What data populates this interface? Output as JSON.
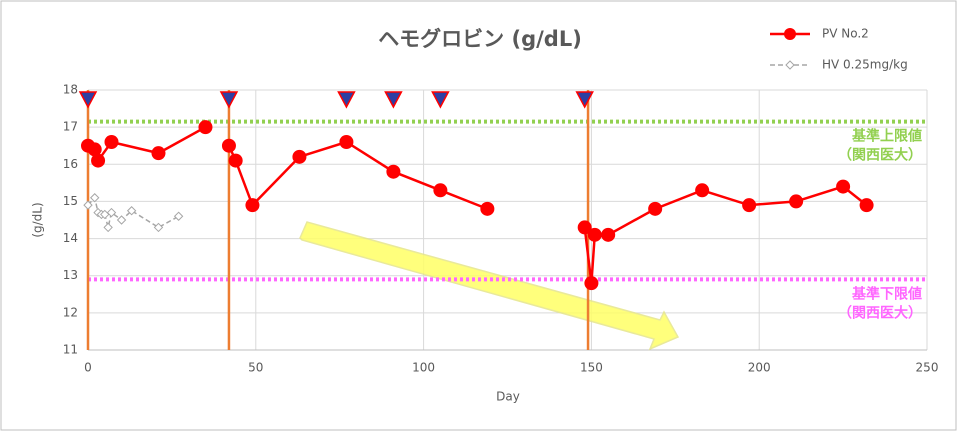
{
  "chart_data": {
    "type": "line",
    "title": "ヘモグロビン (g/dL)",
    "x_label": "Day",
    "y_label": "(g/dL)",
    "xlim": [
      0,
      250
    ],
    "xticks": [
      0,
      50,
      100,
      150,
      200,
      250
    ],
    "ylim": [
      11,
      18
    ],
    "yticks": [
      11,
      12,
      13,
      14,
      15,
      16,
      17,
      18
    ],
    "grid": true,
    "legend": "top-right",
    "series": [
      {
        "name": "PV No.2",
        "color": "#ff0000",
        "style": "solid",
        "x": [
          0,
          2,
          3,
          7,
          21,
          35,
          null,
          42,
          44,
          49,
          63,
          77,
          91,
          105,
          119,
          null,
          148,
          150,
          151,
          155,
          169,
          183,
          197,
          211,
          225,
          232
        ],
        "values": [
          16.5,
          16.4,
          16.1,
          16.6,
          16.3,
          17.0,
          null,
          16.5,
          16.1,
          14.9,
          16.2,
          16.6,
          15.8,
          15.3,
          14.8,
          null,
          14.3,
          12.8,
          14.1,
          14.1,
          14.8,
          15.3,
          14.9,
          15.0,
          15.4,
          14.9
        ]
      },
      {
        "name": "HV 0.25mg/kg",
        "color": "#a6a6a6",
        "style": "dashed",
        "x": [
          0,
          2,
          3,
          4,
          5,
          6,
          7,
          10,
          13,
          21,
          27
        ],
        "values": [
          14.9,
          15.1,
          14.7,
          14.65,
          14.65,
          14.3,
          14.7,
          14.5,
          14.75,
          14.3,
          14.6
        ]
      }
    ],
    "reference_lines": [
      {
        "value": 17.15,
        "color": "#92d050",
        "label": [
          "基準上限値",
          "（関西医大）"
        ]
      },
      {
        "value": 12.9,
        "color": "#ff66ff",
        "label": [
          "基準下限値",
          "（関西医大）"
        ]
      }
    ],
    "events": [
      0,
      42,
      77,
      91,
      105,
      148
    ],
    "vlines": [
      0,
      42,
      149
    ]
  }
}
